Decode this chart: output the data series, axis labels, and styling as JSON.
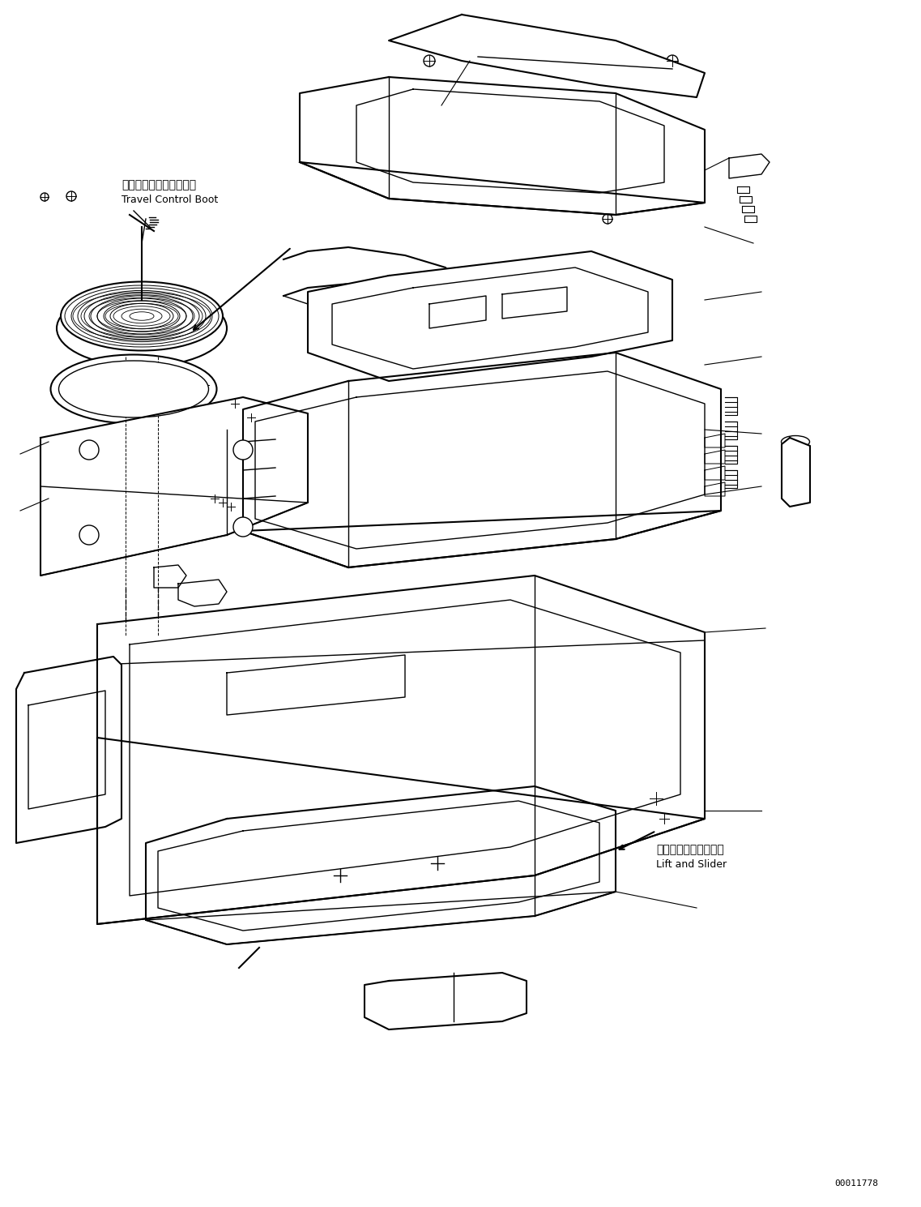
{
  "background_color": "#ffffff",
  "line_color": "#000000",
  "figure_width": 11.37,
  "figure_height": 14.89,
  "dpi": 100,
  "part_number": "00011778",
  "label_travel_control_jp": "走行コントロールブート",
  "label_travel_control_en": "Travel Control Boot",
  "label_lift_slider_jp": "リフトおよびスライダ",
  "label_lift_slider_en": "Lift and Slider",
  "font_size_label": 9,
  "font_size_part_num": 8
}
